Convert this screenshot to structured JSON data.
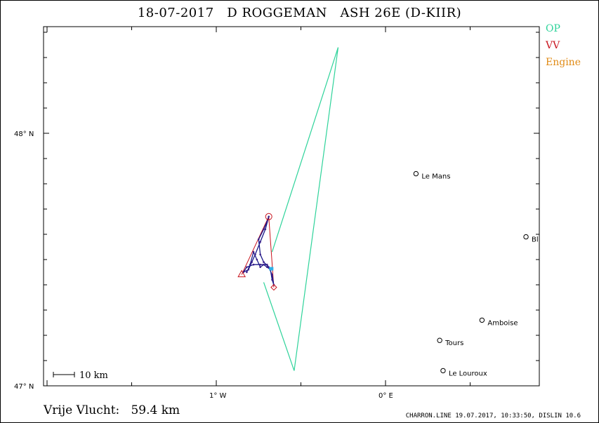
{
  "title": "18-07-2017   D ROGGEMAN   ASH 26E (D-KIIR)",
  "legend": [
    {
      "label": "OP",
      "color": "#2ed39a"
    },
    {
      "label": "VV",
      "color": "#c8141e"
    },
    {
      "label": "Engine",
      "color": "#e08a14"
    }
  ],
  "axes": {
    "lat_ticks": [
      {
        "label": "48° N",
        "value": 48
      },
      {
        "label": "47° N",
        "value": 47
      }
    ],
    "lon_ticks": [
      {
        "label": "1° W",
        "value": -1
      },
      {
        "label": "0° E",
        "value": 0
      }
    ]
  },
  "places": [
    {
      "name": "Le Mans",
      "lon": 0.18,
      "lat": 47.84
    },
    {
      "name": "Bl",
      "lon": 0.83,
      "lat": 47.59
    },
    {
      "name": "Amboise",
      "lon": 0.57,
      "lat": 47.26
    },
    {
      "name": "Tours",
      "lon": 0.32,
      "lat": 47.18
    },
    {
      "name": "Le Louroux",
      "lon": 0.34,
      "lat": 47.06
    }
  ],
  "routes": {
    "op": {
      "color": "#2ed39a",
      "points": [
        [
          -0.67,
          47.53
        ],
        [
          -0.28,
          48.34
        ],
        [
          -0.54,
          47.06
        ],
        [
          -0.72,
          47.41
        ]
      ]
    },
    "vv": {
      "color": "#c8141e",
      "points": [
        [
          -0.85,
          47.44
        ],
        [
          -0.69,
          47.67
        ],
        [
          -0.66,
          47.39
        ]
      ]
    }
  },
  "track": [
    [
      -0.82,
      47.45
    ],
    [
      -0.8,
      47.48
    ],
    [
      -0.78,
      47.53
    ],
    [
      -0.76,
      47.5
    ],
    [
      -0.74,
      47.47
    ],
    [
      -0.72,
      47.48
    ],
    [
      -0.7,
      47.47
    ],
    [
      -0.68,
      47.46
    ],
    [
      -0.67,
      47.42
    ],
    [
      -0.66,
      47.4
    ],
    [
      -0.67,
      47.44
    ],
    [
      -0.69,
      47.47
    ],
    [
      -0.72,
      47.49
    ],
    [
      -0.74,
      47.52
    ],
    [
      -0.75,
      47.58
    ],
    [
      -0.72,
      47.62
    ],
    [
      -0.7,
      47.65
    ],
    [
      -0.69,
      47.67
    ],
    [
      -0.71,
      47.62
    ],
    [
      -0.74,
      47.57
    ],
    [
      -0.77,
      47.52
    ],
    [
      -0.79,
      47.49
    ],
    [
      -0.81,
      47.46
    ],
    [
      -0.84,
      47.45
    ],
    [
      -0.82,
      47.47
    ],
    [
      -0.78,
      47.48
    ],
    [
      -0.74,
      47.48
    ],
    [
      -0.7,
      47.48
    ],
    [
      -0.68,
      47.46
    ]
  ],
  "scale_bar": {
    "label": "10 km",
    "km": 10
  },
  "footer": {
    "left": "Vrije Vlucht:   59.4 km",
    "right": "CHARRON.LINE 19.07.2017, 10:33:50, DISLIN 10.6"
  }
}
